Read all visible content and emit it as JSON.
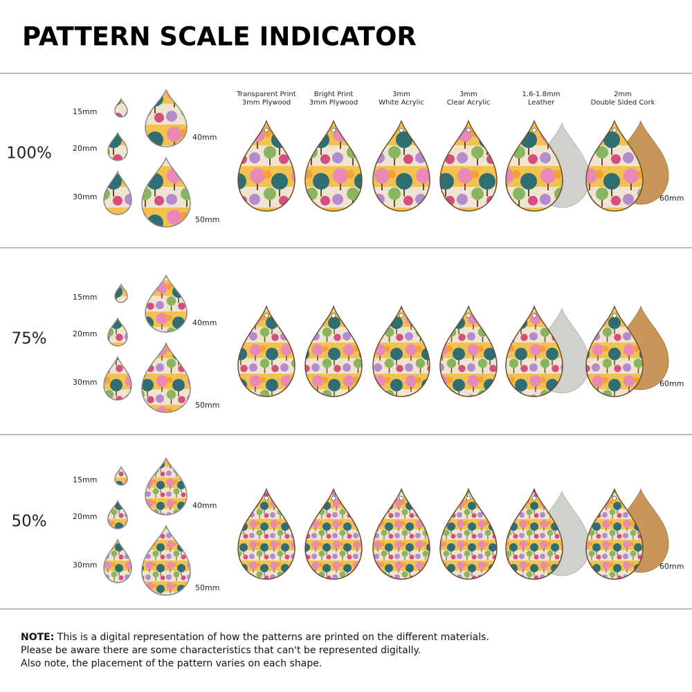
{
  "title": "PATTERN SCALE INDICATOR",
  "materials": [
    [
      "Transparent Print",
      "3mm Plywood"
    ],
    [
      "Bright Print",
      "3mm Plywood"
    ],
    [
      "3mm",
      "White Acrylic"
    ],
    [
      "3mm",
      "Clear Acrylic"
    ],
    [
      "1.6-1.8mm",
      "Leather"
    ],
    [
      "2mm",
      "Double Sided Cork"
    ]
  ],
  "rows": [
    {
      "scale": "100%",
      "sizes": [
        "15mm",
        "20mm",
        "30mm",
        "40mm",
        "50mm"
      ],
      "large": "60mm"
    },
    {
      "scale": "75%",
      "sizes": [
        "15mm",
        "20mm",
        "30mm",
        "40mm",
        "50mm"
      ],
      "large": "60mm"
    },
    {
      "scale": "50%",
      "sizes": [
        "15mm",
        "20mm",
        "30mm",
        "40mm",
        "50mm"
      ],
      "large": "60mm"
    }
  ],
  "note": {
    "label": "NOTE:",
    "lines": [
      "This is a digital representation of how the patterns are printed on the different materials.",
      "Please be aware there are some characteristics that can't be represented digitally.",
      "Also note, the placement of the pattern varies on each shape."
    ]
  }
}
